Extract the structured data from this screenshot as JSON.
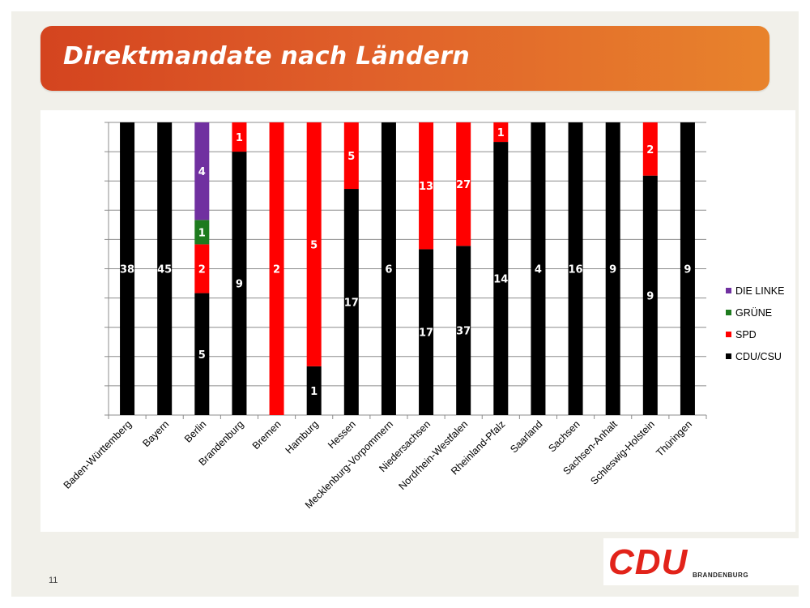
{
  "slide": {
    "title": "Direktmandate nach Ländern",
    "page_number": "11",
    "logo_text": "CDU",
    "logo_subtext": "BRANDENBURG"
  },
  "colors": {
    "DIE LINKE": "#7030a0",
    "GRÜNE": "#1e7b1e",
    "SPD": "#ff0000",
    "CDU/CSU": "#000000",
    "title_bar": "#e0602a",
    "logo": "#e2231a"
  },
  "chart_data": {
    "type": "bar",
    "stacked": "percent",
    "title": "",
    "xlabel": "",
    "ylabel": "",
    "ylim": [
      0,
      100
    ],
    "grid": true,
    "legend_position": "right",
    "categories": [
      "Baden-Württemberg",
      "Bayern",
      "Berlin",
      "Brandenburg",
      "Bremen",
      "Hamburg",
      "Hessen",
      "Mecklenburg-Vorpommern",
      "Niedersachsen",
      "Nordrhein-Westfalen",
      "Rheinland-Pfalz",
      "Saarland",
      "Sachsen",
      "Sachsen-Anhalt",
      "Schleswig-Holstein",
      "Thüringen"
    ],
    "series": [
      {
        "name": "CDU/CSU",
        "values": [
          38,
          45,
          5,
          9,
          0,
          1,
          17,
          6,
          17,
          37,
          14,
          4,
          16,
          9,
          9,
          9
        ]
      },
      {
        "name": "SPD",
        "values": [
          0,
          0,
          2,
          1,
          2,
          5,
          5,
          0,
          13,
          27,
          1,
          0,
          0,
          0,
          2,
          0
        ]
      },
      {
        "name": "GRÜNE",
        "values": [
          0,
          0,
          1,
          0,
          0,
          0,
          0,
          0,
          0,
          0,
          0,
          0,
          0,
          0,
          0,
          0
        ]
      },
      {
        "name": "DIE LINKE",
        "values": [
          0,
          0,
          4,
          0,
          0,
          0,
          0,
          0,
          0,
          0,
          0,
          0,
          0,
          0,
          0,
          0
        ]
      }
    ],
    "legend_order": [
      "DIE LINKE",
      "GRÜNE",
      "SPD",
      "CDU/CSU"
    ]
  }
}
